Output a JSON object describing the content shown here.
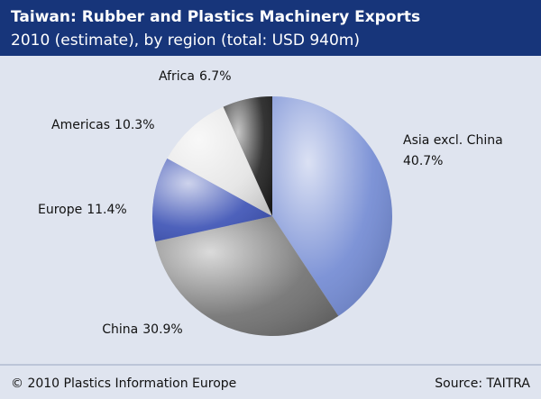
{
  "chart_data": {
    "type": "pie",
    "title": "Taiwan: Rubber and Plastics Machinery Exports",
    "subtitle": "2010 (estimate), by region (total: USD 940m)",
    "categories": [
      "Asia excl. China",
      "China",
      "Europe",
      "Americas",
      "Africa"
    ],
    "values": [
      40.7,
      30.9,
      11.4,
      10.3,
      6.7
    ],
    "value_labels": [
      "40.7%",
      "30.9%",
      "11.4%",
      "10.3%",
      "6.7%"
    ],
    "colors": [
      "#7088d2",
      "#6e6e6e",
      "#3a50b4",
      "#e4e4e4",
      "#1e1e1e"
    ],
    "copyright": "© 2010 Plastics Information Europe",
    "source": "Source: TAITRA"
  }
}
